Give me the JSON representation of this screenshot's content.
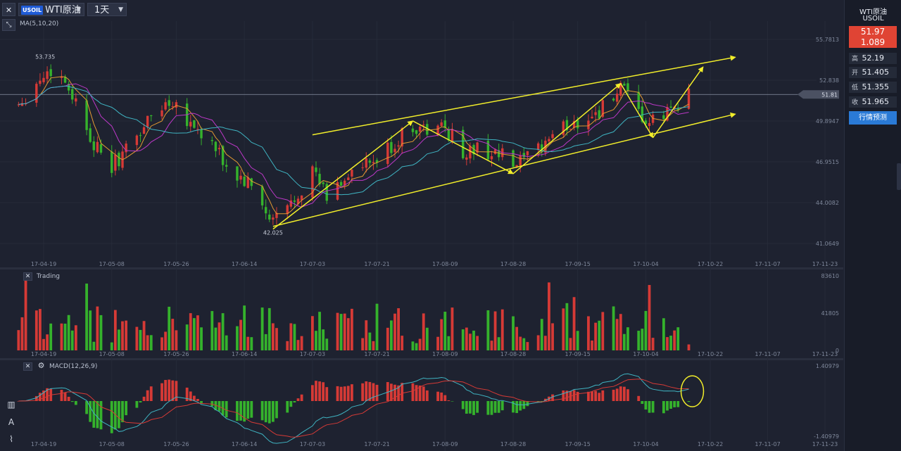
{
  "toolbar": {
    "close_glyph": "✕",
    "symbol_badge": "USOIL",
    "symbol_name": "WTI原油",
    "period": "1天",
    "caret_glyph": "▼"
  },
  "main_panel": {
    "indicator_label": "MA(5,10,20)"
  },
  "volume_panel": {
    "title": "Trading"
  },
  "macd_panel": {
    "title": "MACD(12,26,9)"
  },
  "right_panel": {
    "name": "WTI原油",
    "code": "USOIL",
    "price": "51.97",
    "change": "1.089",
    "high_label": "高",
    "high": "52.19",
    "open_label": "开",
    "open": "51.405",
    "low_label": "低",
    "low": "51.355",
    "close_label": "收",
    "close": "51.965",
    "forecast_button": "行情预测"
  },
  "colors": {
    "up": "#d63a36",
    "down": "#35b22c",
    "annotation": "#f2ee2a",
    "ma5": "#e39a32",
    "ma10": "#bd38c8",
    "ma20": "#3fb4c2",
    "macd_dif": "#3fb4c2",
    "macd_dea": "#d63a36",
    "background": "#1e2230"
  },
  "icons": [
    "close-icon",
    "chevron-down-icon",
    "collapse-icon",
    "gear-icon",
    "chart-type-icon",
    "text-tool-icon",
    "waveform-tool-icon"
  ],
  "chart_data": [
    {
      "type": "candlestick",
      "x_tick_labels": [
        "17-04-19",
        "17-05-08",
        "17-05-26",
        "17-06-14",
        "17-07-03",
        "17-07-21",
        "17-08-09",
        "17-08-28",
        "17-09-15",
        "17-10-04",
        "17-10-22",
        "17-11-07",
        "17-11-23"
      ],
      "y_tick_labels": [
        "55.7813",
        "52.838",
        "49.8947",
        "46.9515",
        "44.0082",
        "41.0649"
      ],
      "y_range": [
        39.85,
        57.1
      ],
      "current_price_label": "51.81",
      "annotations": [
        "53.735",
        "42.025"
      ],
      "indicators": [
        "MA5",
        "MA10",
        "MA20"
      ],
      "price_path": [
        {
          "x": "17-04-12",
          "y": 51.2
        },
        {
          "x": "17-04-19",
          "y": 53.2
        },
        {
          "x": "17-04-22",
          "y": 53.7
        },
        {
          "x": "17-04-26",
          "y": 52.4
        },
        {
          "x": "17-05-01",
          "y": 49.5
        },
        {
          "x": "17-05-05",
          "y": 47.2
        },
        {
          "x": "17-05-08",
          "y": 46.6
        },
        {
          "x": "17-05-12",
          "y": 47.8
        },
        {
          "x": "17-05-16",
          "y": 49.2
        },
        {
          "x": "17-05-20",
          "y": 50.6
        },
        {
          "x": "17-05-25",
          "y": 51.5
        },
        {
          "x": "17-05-30",
          "y": 49.8
        },
        {
          "x": "17-06-05",
          "y": 48.1
        },
        {
          "x": "17-06-10",
          "y": 46.2
        },
        {
          "x": "17-06-14",
          "y": 45.5
        },
        {
          "x": "17-06-18",
          "y": 44.6
        },
        {
          "x": "17-06-21",
          "y": 42.5
        },
        {
          "x": "17-06-26",
          "y": 43.6
        },
        {
          "x": "17-07-03",
          "y": 46.3
        },
        {
          "x": "17-07-07",
          "y": 44.4
        },
        {
          "x": "17-07-13",
          "y": 46.1
        },
        {
          "x": "17-07-20",
          "y": 46.8
        },
        {
          "x": "17-07-25",
          "y": 48.0
        },
        {
          "x": "17-07-31",
          "y": 49.6
        },
        {
          "x": "17-08-05",
          "y": 49.1
        },
        {
          "x": "17-08-09",
          "y": 49.5
        },
        {
          "x": "17-08-14",
          "y": 47.6
        },
        {
          "x": "17-08-19",
          "y": 47.9
        },
        {
          "x": "17-08-25",
          "y": 47.3
        },
        {
          "x": "17-08-28",
          "y": 46.6
        },
        {
          "x": "17-09-02",
          "y": 47.2
        },
        {
          "x": "17-09-08",
          "y": 49.0
        },
        {
          "x": "17-09-15",
          "y": 49.9
        },
        {
          "x": "17-09-21",
          "y": 50.6
        },
        {
          "x": "17-09-27",
          "y": 52.2
        },
        {
          "x": "17-10-02",
          "y": 50.3
        },
        {
          "x": "17-10-05",
          "y": 49.6
        },
        {
          "x": "17-10-09",
          "y": 50.3
        },
        {
          "x": "17-10-13",
          "y": 51.3
        },
        {
          "x": "17-10-16",
          "y": 51.9
        }
      ],
      "trend_channel": {
        "upper": [
          {
            "x": "17-07-03",
            "y": 48.9
          },
          {
            "x": "17-10-29",
            "y": 54.5
          }
        ],
        "lower": [
          {
            "x": "17-06-22",
            "y": 42.3
          },
          {
            "x": "17-10-29",
            "y": 50.4
          }
        ]
      },
      "wave_pattern": [
        {
          "x": "17-06-22",
          "y": 42.1
        },
        {
          "x": "17-07-31",
          "y": 49.9
        },
        {
          "x": "17-08-28",
          "y": 46.1
        },
        {
          "x": "17-09-27",
          "y": 52.6
        },
        {
          "x": "17-10-06",
          "y": 48.7
        },
        {
          "x": "17-10-20",
          "y": 53.8
        }
      ]
    },
    {
      "type": "bar",
      "name": "Trading",
      "y_tick_labels": [
        "83610",
        "41805",
        "0"
      ],
      "y_range": [
        0,
        83610
      ]
    },
    {
      "type": "bar",
      "name": "MACD(12,26,9)",
      "y_tick_labels": [
        "1.40979",
        "-1.40979"
      ],
      "y_range": [
        -1.40979,
        1.40979
      ],
      "lines": [
        "DIF",
        "DEA"
      ]
    }
  ]
}
